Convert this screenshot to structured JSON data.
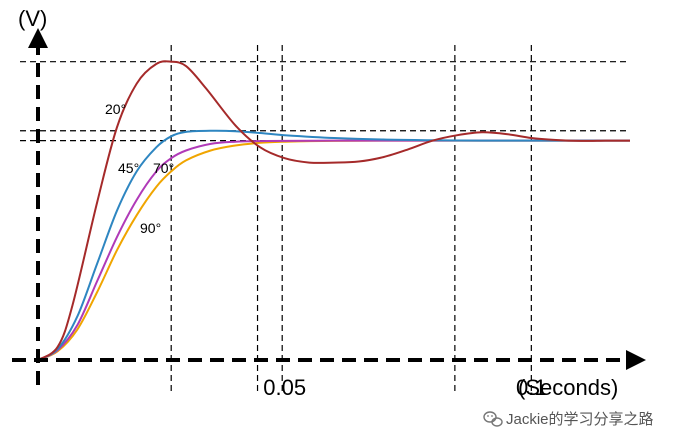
{
  "chart_data": {
    "type": "line",
    "ylabel": "(V)",
    "xlabel": "(Seconds)",
    "x_ticks": [
      {
        "value": 0.05,
        "label": "0.05"
      },
      {
        "value": 0.1,
        "label": "0.1"
      }
    ],
    "xlim": [
      0,
      0.12
    ],
    "ylim": [
      0,
      1.55
    ],
    "grid": "dashed reference lines",
    "reference_lines": {
      "vertical": [
        0.027,
        0.0445,
        0.0495,
        0.0845,
        0.1
      ],
      "horizontal": [
        1.0,
        1.045,
        1.36
      ]
    },
    "series": [
      {
        "name": "20°",
        "color": "#a52a2a",
        "x": [
          0,
          0.004,
          0.007,
          0.012,
          0.016,
          0.02,
          0.024,
          0.027,
          0.03,
          0.034,
          0.04,
          0.045,
          0.05,
          0.055,
          0.06,
          0.065,
          0.07,
          0.075,
          0.08,
          0.085,
          0.09,
          0.095,
          0.1,
          0.105,
          0.11,
          0.115,
          0.12
        ],
        "y": [
          0,
          0.06,
          0.25,
          0.72,
          1.06,
          1.26,
          1.35,
          1.36,
          1.34,
          1.24,
          1.07,
          0.97,
          0.92,
          0.9,
          0.9,
          0.905,
          0.925,
          0.96,
          1.0,
          1.025,
          1.038,
          1.03,
          1.012,
          1.003,
          0.999,
          1.0,
          1.0
        ]
      },
      {
        "name": "45°",
        "color": "#2e86c1",
        "x": [
          0,
          0.004,
          0.008,
          0.012,
          0.016,
          0.02,
          0.024,
          0.027,
          0.03,
          0.035,
          0.04,
          0.045,
          0.05,
          0.06,
          0.07,
          0.08,
          0.09,
          0.1,
          0.11,
          0.12
        ],
        "y": [
          0,
          0.05,
          0.2,
          0.44,
          0.68,
          0.86,
          0.97,
          1.02,
          1.04,
          1.045,
          1.043,
          1.035,
          1.025,
          1.012,
          1.005,
          1.002,
          1.0,
          1.0,
          1.0,
          1.0
        ]
      },
      {
        "name": "70°",
        "color": "#b03ab8",
        "x": [
          0,
          0.004,
          0.008,
          0.012,
          0.016,
          0.02,
          0.024,
          0.027,
          0.03,
          0.035,
          0.04,
          0.045,
          0.05,
          0.06,
          0.07,
          0.08,
          0.09,
          0.1,
          0.11,
          0.12
        ],
        "y": [
          0,
          0.045,
          0.16,
          0.36,
          0.56,
          0.73,
          0.86,
          0.92,
          0.955,
          0.985,
          0.995,
          0.998,
          0.999,
          1.0,
          1.0,
          1.0,
          1.0,
          1.0,
          1.0,
          1.0
        ]
      },
      {
        "name": "90°",
        "color": "#f0a500",
        "x": [
          0,
          0.004,
          0.008,
          0.012,
          0.016,
          0.02,
          0.024,
          0.027,
          0.03,
          0.035,
          0.04,
          0.045,
          0.05,
          0.06,
          0.07,
          0.08,
          0.09,
          0.1,
          0.11,
          0.12
        ],
        "y": [
          0,
          0.04,
          0.14,
          0.31,
          0.5,
          0.66,
          0.79,
          0.86,
          0.91,
          0.955,
          0.978,
          0.99,
          0.995,
          0.999,
          1.0,
          1.0,
          1.0,
          1.0,
          1.0,
          1.0
        ]
      }
    ]
  },
  "watermark": {
    "text": "Jackie的学习分享之路",
    "icon": "wechat-icon"
  }
}
